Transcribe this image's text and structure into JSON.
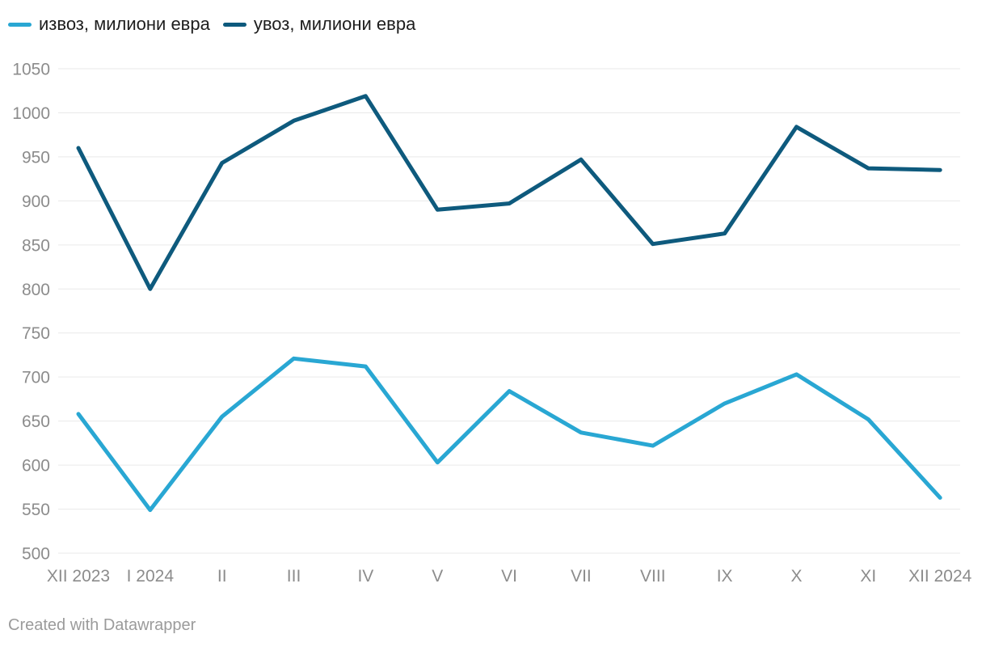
{
  "legend": {
    "items": [
      {
        "label": "извоз, милиони евра",
        "color": "#29a7d3"
      },
      {
        "label": "увоз, милиони евра",
        "color": "#0e5a7d"
      }
    ]
  },
  "footer": {
    "text": "Created with Datawrapper"
  },
  "colors": {
    "background": "#ffffff",
    "grid": "#e9e9e9",
    "axis_label": "#8c8c8c",
    "legend_text": "#1d1d1d",
    "footer_text": "#9b9b9b",
    "exports_line": "#29a7d3",
    "imports_line": "#0e5a7d"
  },
  "chart_data": {
    "type": "line",
    "title": "",
    "xlabel": "",
    "ylabel": "",
    "categories": [
      "XII 2023",
      "I 2024",
      "II",
      "III",
      "IV",
      "V",
      "VI",
      "VII",
      "VIII",
      "IX",
      "X",
      "XI",
      "XII 2024"
    ],
    "series": [
      {
        "name": "извоз, милиони евра",
        "color": "#29a7d3",
        "values": [
          658,
          549,
          655,
          721,
          712,
          603,
          684,
          637,
          622,
          670,
          703,
          652,
          563
        ]
      },
      {
        "name": "увоз, милиони евра",
        "color": "#0e5a7d",
        "values": [
          960,
          800,
          943,
          991,
          1019,
          890,
          897,
          947,
          851,
          863,
          984,
          937,
          935
        ]
      }
    ],
    "ylim": [
      500,
      1050
    ],
    "yticks": [
      1050,
      1000,
      950,
      900,
      850,
      800,
      750,
      700,
      650,
      600,
      550,
      500
    ],
    "grid": "horizontal",
    "legend_position": "top-left"
  }
}
